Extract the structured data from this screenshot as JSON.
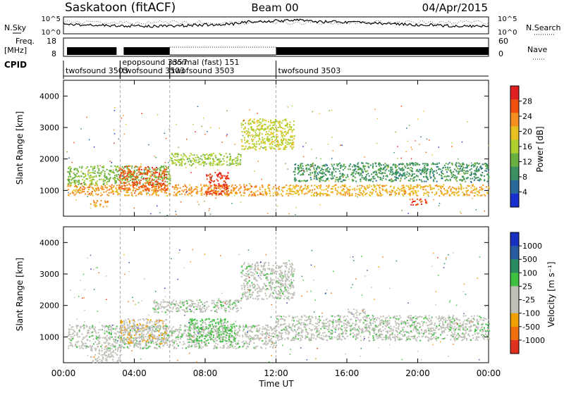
{
  "header": {
    "title": "Saskatoon (fitACF)",
    "beam": "Beam 00",
    "date": "04/Apr/2015"
  },
  "labels": {
    "nsky": "N.Sky",
    "nsearch": "N.Search",
    "freq_line1": "Freq.",
    "freq_line2": "[MHz]",
    "nave": "Nave",
    "cpid": "CPID",
    "noise_ticks_left": [
      "10^5",
      "10^0"
    ],
    "noise_ticks_right": [
      "10^5",
      "10^0"
    ],
    "freq_ticks": [
      "18",
      "8"
    ],
    "nave_ticks": [
      "60",
      "0"
    ],
    "cpid_segments": [
      {
        "label": "twofsound  3503",
        "start_h": 0.0,
        "end_h": 3.2
      },
      {
        "label": "epopsound  3357",
        "start_h": 3.2,
        "end_h": 6.0
      },
      {
        "label": "twofsound  3503",
        "start_h": 3.2,
        "end_h": 6.0
      },
      {
        "label": "normal (fast)  151",
        "start_h": 6.0,
        "end_h": 12.0
      },
      {
        "label": "twofsound  3503",
        "start_h": 6.0,
        "end_h": 12.0
      },
      {
        "label": "twofsound  3503",
        "start_h": 12.0,
        "end_h": 24.0
      }
    ]
  },
  "axes": {
    "xlabel": "Time UT",
    "ylabel": "Slant Range [km]",
    "x_ticks": [
      "00:00",
      "04:00",
      "08:00",
      "12:00",
      "16:00",
      "20:00",
      "00:00"
    ],
    "y_ticks": [
      "1000",
      "2000",
      "3000",
      "4000"
    ]
  },
  "colorbars": {
    "power": {
      "label": "Power [dB]",
      "ticks": [
        "28",
        "24",
        "20",
        "16",
        "12",
        "8",
        "4"
      ],
      "colors": [
        "#e02020",
        "#f05010",
        "#f59020",
        "#e8c020",
        "#b0d030",
        "#6ab040",
        "#3a9060",
        "#2a6a9a",
        "#1a30d0"
      ]
    },
    "velocity": {
      "label": "Velocity [m s⁻¹]",
      "ticks": [
        "1000",
        "500",
        "100",
        "25",
        "-25",
        "-100",
        "-500",
        "-1000"
      ],
      "colors": [
        "#1a30c0",
        "#2a5aa0",
        "#2a8a60",
        "#40c040",
        "#c0c0b8",
        "#c0c0b8",
        "#f0a000",
        "#f07010",
        "#e03020"
      ]
    }
  },
  "chart_data": {
    "type": "heatmap",
    "title": "Saskatoon (fitACF)",
    "subtitle": "Beam 00",
    "date": "04/Apr/2015",
    "xlabel": "Time UT",
    "ylabel": "Slant Range [km]",
    "xlim": [
      0,
      24
    ],
    "ylim": [
      180,
      4500
    ],
    "panels": [
      {
        "name": "Power",
        "unit": "dB",
        "clim": [
          0,
          30
        ],
        "regions": [
          {
            "t": [
              0.2,
              12.5
            ],
            "r": [
              850,
              1200
            ],
            "value": 22
          },
          {
            "t": [
              12.5,
              24
            ],
            "r": [
              850,
              1200
            ],
            "value": 20
          },
          {
            "t": [
              0.2,
              6
            ],
            "r": [
              1200,
              1800
            ],
            "value": 12
          },
          {
            "t": [
              6,
              10
            ],
            "r": [
              1800,
              2200
            ],
            "value": 14
          },
          {
            "t": [
              10,
              13
            ],
            "r": [
              2300,
              3300
            ],
            "value": 16
          },
          {
            "t": [
              13,
              24
            ],
            "r": [
              1300,
              1900
            ],
            "value": 8
          },
          {
            "t": [
              8,
              9.3
            ],
            "r": [
              900,
              1600
            ],
            "value": 28
          },
          {
            "t": [
              3.1,
              5.8
            ],
            "r": [
              1000,
              1800
            ],
            "value": 26
          },
          {
            "t": [
              19.5,
              20.5
            ],
            "r": [
              550,
              750
            ],
            "value": 26
          },
          {
            "t": [
              1.5,
              2.5
            ],
            "r": [
              500,
              700
            ],
            "value": 22
          }
        ]
      },
      {
        "name": "Velocity",
        "unit": "m s^-1",
        "clim": [
          -1000,
          1000
        ],
        "regions": [
          {
            "t": [
              0.2,
              12
            ],
            "r": [
              650,
              1400
            ],
            "value": 0
          },
          {
            "t": [
              12,
              24
            ],
            "r": [
              900,
              1700
            ],
            "value": 0
          },
          {
            "t": [
              5,
              10
            ],
            "r": [
              1800,
              2200
            ],
            "value": 0
          },
          {
            "t": [
              10,
              13
            ],
            "r": [
              2200,
              3400
            ],
            "value": 0
          },
          {
            "t": [
              7,
              9.7
            ],
            "r": [
              850,
              1600
            ],
            "value": 200
          },
          {
            "t": [
              3.1,
              5.8
            ],
            "r": [
              800,
              1600
            ],
            "value": -300
          },
          {
            "t": [
              1.5,
              3.2
            ],
            "r": [
              200,
              650
            ],
            "value": -150
          },
          {
            "t": [
              16,
              17
            ],
            "r": [
              1700,
              1900
            ],
            "value": -100
          }
        ]
      }
    ]
  }
}
